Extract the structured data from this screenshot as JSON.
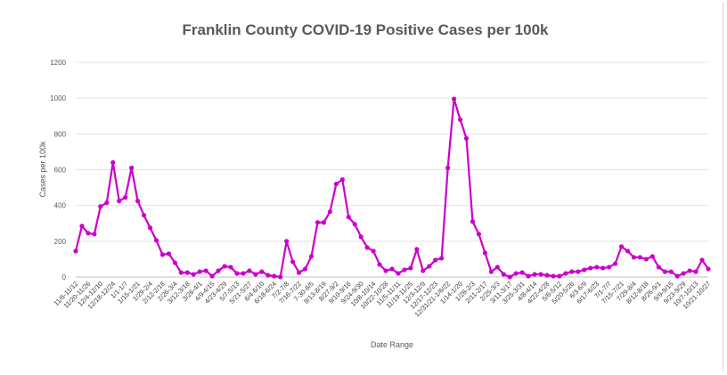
{
  "chart_data": {
    "type": "line",
    "title": "Franklin County COVID-19 Positive Cases per 100k",
    "xlabel": "Date Range",
    "ylabel": "Cases per 100k",
    "ylim": [
      0,
      1200
    ],
    "yticks": [
      0,
      200,
      400,
      600,
      800,
      1000,
      1200
    ],
    "grid": true,
    "legend": "none",
    "x_tick_labels": [
      "11/6-11/12",
      "11/20-11/26",
      "12/4-12/10",
      "12/18-12/24",
      "1/1-1/7",
      "1/15-1/21",
      "1/29-2/4",
      "2/12-2/18",
      "2/26-3/4",
      "3/12-3/18",
      "3/26-4/1",
      "4/9-4/15",
      "4/23-4/29",
      "5/7-5/13",
      "5/21-5/27",
      "6/4-6/10",
      "6/18-6/24",
      "7/2-7/8",
      "7/16-7/22",
      "7-30-8/5",
      "8/13-8/19",
      "8/27-9/2",
      "9/10-9/16",
      "9/24-9/30",
      "10/8-10/14",
      "10/22-10/28",
      "11/5-11/11",
      "11/19-11/25",
      "12/3-12/9",
      "12/17-12/23",
      "12/31/21-1/6/22",
      "1/14-1/20",
      "1/28-2/3",
      "2/11-2/17",
      "2/25-3/3",
      "3/11-3/17",
      "3/25-3/31",
      "4/8-4/14",
      "4/22-4/28",
      "5/6-5/12",
      "5/20-5/26",
      "6/3-6/9",
      "6/17-6/23",
      "7/1-7/7",
      "7/15-7/21",
      "7/29-8/4",
      "8/12-8/18",
      "8/26-9/1",
      "9/9-9/15",
      "9/23-9/29",
      "10/7-10/13",
      "10/21-10/27"
    ],
    "series": [
      {
        "color": "#cc00cc",
        "values": [
          145,
          285,
          245,
          240,
          395,
          415,
          640,
          425,
          445,
          610,
          425,
          345,
          275,
          205,
          125,
          130,
          80,
          25,
          25,
          15,
          30,
          35,
          5,
          35,
          60,
          55,
          20,
          20,
          35,
          15,
          30,
          10,
          5,
          0,
          200,
          85,
          25,
          45,
          115,
          305,
          305,
          365,
          520,
          545,
          335,
          295,
          225,
          165,
          145,
          70,
          35,
          45,
          20,
          40,
          50,
          155,
          35,
          60,
          95,
          105,
          610,
          995,
          880,
          775,
          310,
          240,
          135,
          30,
          55,
          15,
          0,
          20,
          25,
          5,
          15,
          15,
          10,
          5,
          5,
          20,
          30,
          30,
          40,
          50,
          55,
          50,
          55,
          75,
          170,
          145,
          110,
          110,
          100,
          115,
          55,
          30,
          30,
          5,
          20,
          35,
          30,
          95,
          45
        ]
      }
    ]
  }
}
